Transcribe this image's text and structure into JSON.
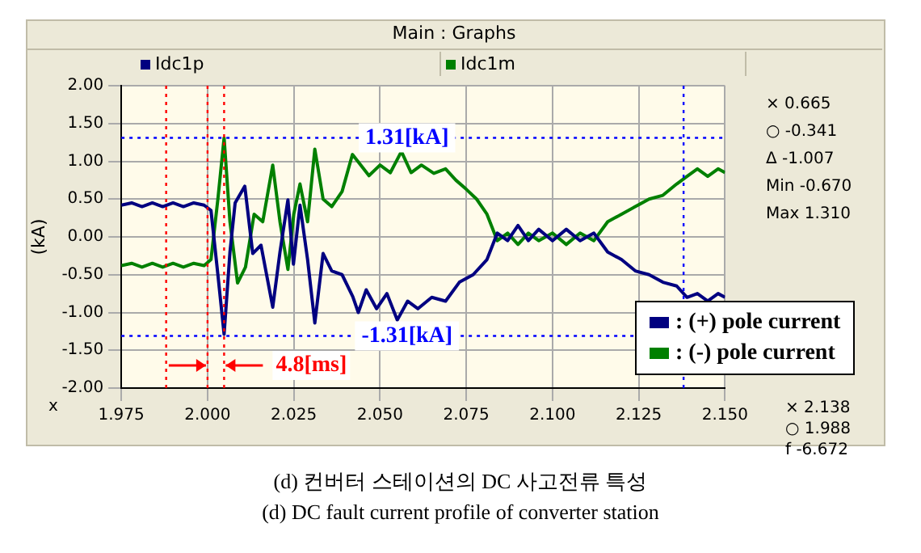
{
  "chart_data": {
    "type": "line",
    "title": "Main : Graphs",
    "xlabel": "x",
    "ylabel": "(kA)",
    "xlim": [
      1.975,
      2.15
    ],
    "xticks": [
      1.975,
      {
        "value": 2.0,
        "label": "2.000"
      },
      2.025,
      {
        "value": 2.05,
        "label": "2.050"
      },
      2.075,
      {
        "value": 2.1,
        "label": "2.100"
      },
      2.125,
      {
        "value": 2.15,
        "label": "2.150"
      }
    ],
    "ylim": [
      -2,
      2
    ],
    "yticks": [
      {
        "value": -2,
        "label": "-2.00"
      },
      {
        "value": -1.5,
        "label": "-1.50"
      },
      {
        "value": -1,
        "label": "-1.00"
      },
      {
        "value": -0.5,
        "label": "-0.50"
      },
      {
        "value": 0,
        "label": "0.00"
      },
      {
        "value": 0.5,
        "label": "0.50"
      },
      {
        "value": 1,
        "label": "1.00"
      },
      {
        "value": 1.5,
        "label": "1.50"
      },
      {
        "value": 2,
        "label": "2.00"
      }
    ],
    "grid": true,
    "legend": "bottom right",
    "marker": "none",
    "series": [
      {
        "name": ": (+) pole current",
        "color": "#000080",
        "x": [
          1.975,
          1.978,
          1.981,
          1.984,
          1.987,
          1.99,
          1.993,
          1.996,
          1.999,
          2.001,
          2.003,
          2.0048,
          2.0065,
          2.008,
          2.0108,
          2.0131,
          2.0155,
          2.0189,
          2.021,
          2.0233,
          2.0249,
          2.0268,
          2.029,
          2.0311,
          2.0335,
          2.036,
          2.039,
          2.0421,
          2.0437,
          2.046,
          2.049,
          2.052,
          2.055,
          2.058,
          2.061,
          2.065,
          2.069,
          2.073,
          2.077,
          2.081,
          2.084,
          2.087,
          2.09,
          2.093,
          2.096,
          2.1,
          2.104,
          2.108,
          2.112,
          2.116,
          2.12,
          2.124,
          2.128,
          2.132,
          2.136,
          2.139,
          2.142,
          2.145,
          2.148,
          2.15
        ],
        "values": [
          0.42,
          0.45,
          0.4,
          0.45,
          0.4,
          0.45,
          0.4,
          0.45,
          0.42,
          0.35,
          -0.5,
          -1.29,
          -0.2,
          0.45,
          0.67,
          -0.22,
          -0.11,
          -0.93,
          -0.2,
          0.49,
          -0.36,
          0.42,
          -0.3,
          -1.14,
          -0.22,
          -0.45,
          -0.5,
          -0.79,
          -1.0,
          -0.7,
          -0.95,
          -0.75,
          -1.1,
          -0.85,
          -0.95,
          -0.8,
          -0.85,
          -0.6,
          -0.5,
          -0.3,
          0.05,
          -0.05,
          0.15,
          -0.05,
          0.1,
          -0.05,
          0.1,
          -0.05,
          0.05,
          -0.2,
          -0.3,
          -0.45,
          -0.5,
          -0.6,
          -0.65,
          -0.8,
          -0.75,
          -0.85,
          -0.75,
          -0.8
        ]
      },
      {
        "name": ": (-) pole current",
        "color": "#008000",
        "x": [
          1.975,
          1.978,
          1.981,
          1.984,
          1.987,
          1.99,
          1.993,
          1.996,
          1.999,
          2.001,
          2.003,
          2.0048,
          2.0065,
          2.0087,
          2.011,
          2.0135,
          2.016,
          2.0189,
          2.021,
          2.0233,
          2.025,
          2.0268,
          2.029,
          2.0311,
          2.0335,
          2.036,
          2.039,
          2.042,
          2.0468,
          2.05,
          2.053,
          2.0562,
          2.059,
          2.062,
          2.0656,
          2.069,
          2.072,
          2.075,
          2.078,
          2.081,
          2.084,
          2.087,
          2.09,
          2.093,
          2.096,
          2.1,
          2.104,
          2.108,
          2.112,
          2.116,
          2.12,
          2.124,
          2.128,
          2.132,
          2.136,
          2.139,
          2.142,
          2.145,
          2.148,
          2.15
        ],
        "values": [
          -0.38,
          -0.35,
          -0.4,
          -0.35,
          -0.4,
          -0.35,
          -0.4,
          -0.35,
          -0.38,
          -0.3,
          0.5,
          1.31,
          0.2,
          -0.61,
          -0.4,
          0.3,
          0.2,
          0.95,
          0.2,
          -0.43,
          0.3,
          0.7,
          0.2,
          1.16,
          0.5,
          0.4,
          0.6,
          1.09,
          0.81,
          0.95,
          0.85,
          1.13,
          0.85,
          0.95,
          0.84,
          0.9,
          0.75,
          0.63,
          0.5,
          0.3,
          -0.05,
          0.05,
          -0.1,
          0.05,
          -0.05,
          0.05,
          -0.1,
          0.05,
          -0.05,
          0.2,
          0.3,
          0.4,
          0.5,
          0.55,
          0.7,
          0.8,
          0.9,
          0.8,
          0.9,
          0.85
        ]
      }
    ],
    "ref_lines": [
      {
        "axis": "y",
        "value": 1.31,
        "label": "1.31[kA]",
        "color": "#0000ff",
        "line_style": "dotted"
      },
      {
        "axis": "y",
        "value": -1.31,
        "label": "-1.31[kA]",
        "color": "#0000ff",
        "line_style": "dotted"
      },
      {
        "axis": "x",
        "value": 1.988,
        "color": "#ff0000",
        "line_style": "dotted"
      },
      {
        "axis": "x",
        "value": 2.0,
        "color": "#ff0000",
        "line_style": "dotted"
      },
      {
        "axis": "x",
        "value": 2.0048,
        "color": "#ff0000",
        "line_style": "dotted"
      },
      {
        "axis": "x",
        "value": 2.138,
        "color": "#0000ff",
        "line_style": "dotted"
      }
    ],
    "annotations": [
      "Idc1p",
      "Idc1m",
      "× 0.665",
      "○ -0.341",
      "Δ -1.007",
      "Min -0.670",
      "Max 1.310",
      "× 2.138",
      "○ 1.988",
      "f -6.672",
      "(d) 컨버터 스테이션의 DC 사고전류 특성",
      "(d) DC fault current profile of converter station",
      {
        "text": "4.8[ms]",
        "x": 2.0048,
        "y": -1.7
      }
    ]
  }
}
